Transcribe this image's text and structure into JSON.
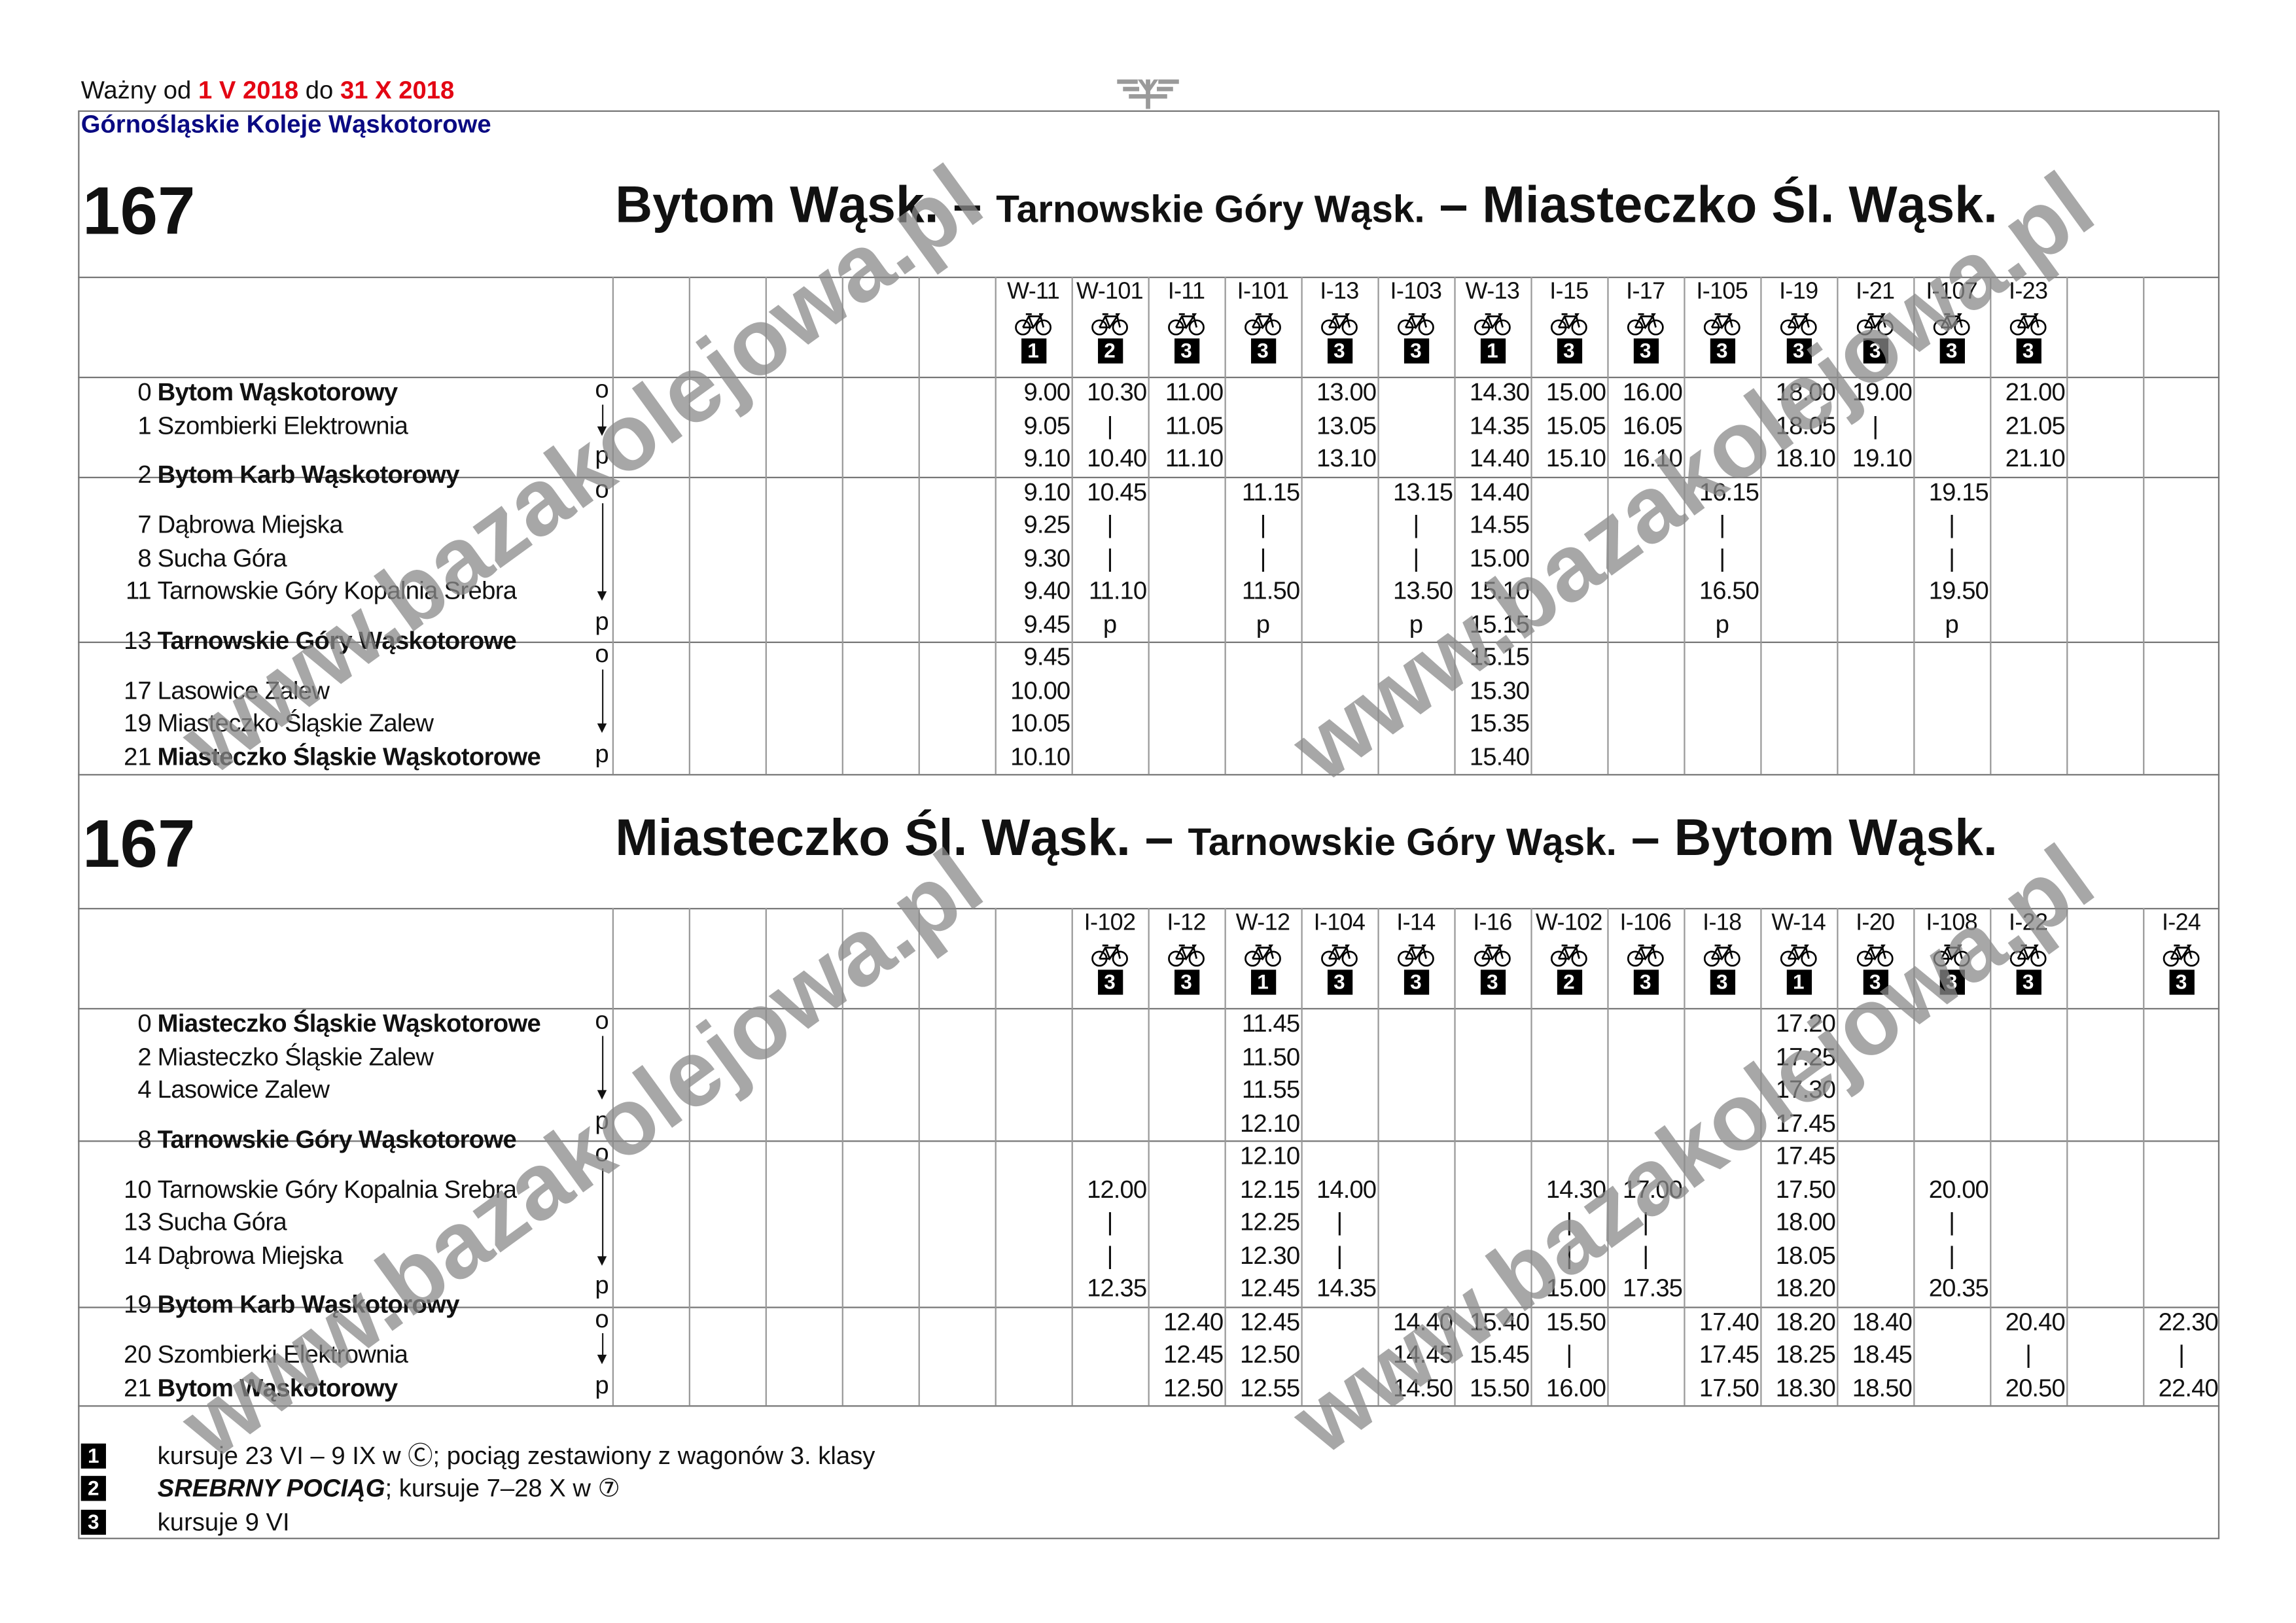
{
  "header": {
    "valid_prefix": "Ważny od",
    "valid_from": "1 V 2018",
    "valid_mid": "do",
    "valid_to": "31 X 2018",
    "operator": "Górnośląskie Koleje Wąskotorowe",
    "logo_icon": "railway-logo-icon"
  },
  "colors": {
    "date_red": "#e30613",
    "operator_blue": "#0a0a82",
    "watermark": "#8a8a8a"
  },
  "watermark": "www.bazakolejowa.pl",
  "tables": [
    {
      "line": "167",
      "title": {
        "from": "Bytom Wąsk.",
        "sep1": "–",
        "via": "Tarnowskie Góry Wąsk.",
        "sep2": "–",
        "to": "Miasteczko Śl. Wąsk."
      },
      "groups": [
        [
          {
            "km": "0",
            "name": "Bytom Wąskotorowy",
            "bold": true,
            "mark": "o"
          },
          {
            "km": "1",
            "name": "Szombierki Elektrownia",
            "arrow": true
          },
          {
            "mark": "p"
          }
        ],
        [
          {
            "km": "2",
            "name": "Bytom Karb Wąskotorowy",
            "bold": true,
            "mark": "o",
            "transfer": true
          },
          {
            "km": "7",
            "name": "Dąbrowa Miejska"
          },
          {
            "km": "8",
            "name": "Sucha Góra"
          },
          {
            "km": "11",
            "name": "Tarnowskie Góry Kopalnia Srebra",
            "arrow": true
          },
          {
            "mark": "p"
          }
        ],
        [
          {
            "km": "13",
            "name": "Tarnowskie Góry Wąskotorowe",
            "bold": true,
            "mark": "o",
            "transfer": true
          },
          {
            "km": "17",
            "name": "Lasowice Zalew"
          },
          {
            "km": "19",
            "name": "Miasteczko Śląskie Zalew",
            "arrow": true
          },
          {
            "km": "21",
            "name": "Miasteczko Śląskie Wąskotorowe",
            "bold": true,
            "mark": "p"
          }
        ]
      ],
      "columns": [
        {
          "number": "",
          "times": []
        },
        {
          "number": "",
          "times": []
        },
        {
          "number": "",
          "times": []
        },
        {
          "number": "",
          "times": []
        },
        {
          "number": "",
          "times": []
        },
        {
          "number": "W-11",
          "bike": true,
          "badge": "1",
          "times": [
            "9.00",
            "9.05",
            "9.10",
            "9.10",
            "9.25",
            "9.30",
            "9.40",
            "9.45",
            "9.45",
            "10.00",
            "10.05",
            "10.10"
          ]
        },
        {
          "number": "W-101",
          "bike": true,
          "badge": "2",
          "times": [
            "10.30",
            "|",
            "10.40",
            "10.45",
            "|",
            "|",
            "11.10",
            "p",
            "",
            "",
            "",
            ""
          ]
        },
        {
          "number": "I-11",
          "bike": true,
          "badge": "3",
          "times": [
            "11.00",
            "11.05",
            "11.10",
            "",
            "",
            "",
            "",
            "",
            "",
            "",
            "",
            ""
          ]
        },
        {
          "number": "I-101",
          "bike": true,
          "badge": "3",
          "times": [
            "",
            "",
            "",
            "11.15",
            "|",
            "|",
            "11.50",
            "p",
            "",
            "",
            "",
            ""
          ]
        },
        {
          "number": "I-13",
          "bike": true,
          "badge": "3",
          "times": [
            "13.00",
            "13.05",
            "13.10",
            "",
            "",
            "",
            "",
            "",
            "",
            "",
            "",
            ""
          ]
        },
        {
          "number": "I-103",
          "bike": true,
          "badge": "3",
          "times": [
            "",
            "",
            "",
            "13.15",
            "|",
            "|",
            "13.50",
            "p",
            "",
            "",
            "",
            ""
          ]
        },
        {
          "number": "W-13",
          "bike": true,
          "badge": "1",
          "times": [
            "14.30",
            "14.35",
            "14.40",
            "14.40",
            "14.55",
            "15.00",
            "15.10",
            "15.15",
            "15.15",
            "15.30",
            "15.35",
            "15.40"
          ]
        },
        {
          "number": "I-15",
          "bike": true,
          "badge": "3",
          "times": [
            "15.00",
            "15.05",
            "15.10",
            "",
            "",
            "",
            "",
            "",
            "",
            "",
            "",
            ""
          ]
        },
        {
          "number": "I-17",
          "bike": true,
          "badge": "3",
          "times": [
            "16.00",
            "16.05",
            "16.10",
            "",
            "",
            "",
            "",
            "",
            "",
            "",
            "",
            ""
          ]
        },
        {
          "number": "I-105",
          "bike": true,
          "badge": "3",
          "times": [
            "",
            "",
            "",
            "16.15",
            "|",
            "|",
            "16.50",
            "p",
            "",
            "",
            "",
            ""
          ]
        },
        {
          "number": "I-19",
          "bike": true,
          "badge": "3",
          "times": [
            "18.00",
            "18.05",
            "18.10",
            "",
            "",
            "",
            "",
            "",
            "",
            "",
            "",
            ""
          ]
        },
        {
          "number": "I-21",
          "bike": true,
          "badge": "3",
          "times": [
            "19.00",
            "|",
            "19.10",
            "",
            "",
            "",
            "",
            "",
            "",
            "",
            "",
            ""
          ]
        },
        {
          "number": "I-107",
          "bike": true,
          "badge": "3",
          "times": [
            "",
            "",
            "",
            "19.15",
            "|",
            "|",
            "19.50",
            "p",
            "",
            "",
            "",
            ""
          ]
        },
        {
          "number": "I-23",
          "bike": true,
          "badge": "3",
          "times": [
            "21.00",
            "21.05",
            "21.10",
            "",
            "",
            "",
            "",
            "",
            "",
            "",
            "",
            ""
          ]
        },
        {
          "number": "",
          "times": []
        },
        {
          "number": "",
          "times": []
        }
      ]
    },
    {
      "line": "167",
      "title": {
        "from": "Miasteczko Śl. Wąsk.",
        "sep1": "–",
        "via": "Tarnowskie Góry Wąsk.",
        "sep2": "–",
        "to": "Bytom Wąsk."
      },
      "groups": [
        [
          {
            "km": "0",
            "name": "Miasteczko Śląskie Wąskotorowe",
            "bold": true,
            "mark": "o"
          },
          {
            "km": "2",
            "name": "Miasteczko Śląskie Zalew"
          },
          {
            "km": "4",
            "name": "Lasowice Zalew",
            "arrow": true
          },
          {
            "mark": "p"
          }
        ],
        [
          {
            "km": "8",
            "name": "Tarnowskie Góry Wąskotorowe",
            "bold": true,
            "mark": "o",
            "transfer": true
          },
          {
            "km": "10",
            "name": "Tarnowskie Góry Kopalnia Srebra"
          },
          {
            "km": "13",
            "name": "Sucha Góra"
          },
          {
            "km": "14",
            "name": "Dąbrowa Miejska",
            "arrow": true
          },
          {
            "mark": "p"
          }
        ],
        [
          {
            "km": "19",
            "name": "Bytom Karb Wąskotorowy",
            "bold": true,
            "mark": "o",
            "transfer": true
          },
          {
            "km": "20",
            "name": "Szombierki Elektrownia",
            "arrow": true
          },
          {
            "km": "21",
            "name": "Bytom Wąskotorowy",
            "bold": true,
            "mark": "p"
          }
        ]
      ],
      "columns": [
        {
          "number": "",
          "times": []
        },
        {
          "number": "",
          "times": []
        },
        {
          "number": "",
          "times": []
        },
        {
          "number": "",
          "times": []
        },
        {
          "number": "",
          "times": []
        },
        {
          "number": "",
          "times": []
        },
        {
          "number": "I-102",
          "bike": true,
          "badge": "3",
          "times": [
            "",
            "",
            "",
            "",
            "",
            "12.00",
            "|",
            "|",
            "12.35",
            "",
            "",
            ""
          ]
        },
        {
          "number": "I-12",
          "bike": true,
          "badge": "3",
          "times": [
            "",
            "",
            "",
            "",
            "",
            "",
            "",
            "",
            "",
            "12.40",
            "12.45",
            "12.50"
          ]
        },
        {
          "number": "W-12",
          "bike": true,
          "badge": "1",
          "times": [
            "11.45",
            "11.50",
            "11.55",
            "12.10",
            "12.10",
            "12.15",
            "12.25",
            "12.30",
            "12.45",
            "12.45",
            "12.50",
            "12.55"
          ]
        },
        {
          "number": "I-104",
          "bike": true,
          "badge": "3",
          "times": [
            "",
            "",
            "",
            "",
            "",
            "14.00",
            "|",
            "|",
            "14.35",
            "",
            "",
            ""
          ]
        },
        {
          "number": "I-14",
          "bike": true,
          "badge": "3",
          "times": [
            "",
            "",
            "",
            "",
            "",
            "",
            "",
            "",
            "",
            "14.40",
            "14.45",
            "14.50"
          ]
        },
        {
          "number": "I-16",
          "bike": true,
          "badge": "3",
          "times": [
            "",
            "",
            "",
            "",
            "",
            "",
            "",
            "",
            "",
            "15.40",
            "15.45",
            "15.50"
          ]
        },
        {
          "number": "W-102",
          "bike": true,
          "badge": "2",
          "times": [
            "",
            "",
            "",
            "",
            "",
            "14.30",
            "|",
            "|",
            "15.00",
            "15.50",
            "|",
            "16.00"
          ]
        },
        {
          "number": "I-106",
          "bike": true,
          "badge": "3",
          "times": [
            "",
            "",
            "",
            "",
            "",
            "17.00",
            "|",
            "|",
            "17.35",
            "",
            "",
            ""
          ]
        },
        {
          "number": "I-18",
          "bike": true,
          "badge": "3",
          "times": [
            "",
            "",
            "",
            "",
            "",
            "",
            "",
            "",
            "",
            "17.40",
            "17.45",
            "17.50"
          ]
        },
        {
          "number": "W-14",
          "bike": true,
          "badge": "1",
          "times": [
            "17.20",
            "17.25",
            "17.30",
            "17.45",
            "17.45",
            "17.50",
            "18.00",
            "18.05",
            "18.20",
            "18.20",
            "18.25",
            "18.30"
          ]
        },
        {
          "number": "I-20",
          "bike": true,
          "badge": "3",
          "times": [
            "",
            "",
            "",
            "",
            "",
            "",
            "",
            "",
            "",
            "18.40",
            "18.45",
            "18.50"
          ]
        },
        {
          "number": "I-108",
          "bike": true,
          "badge": "3",
          "times": [
            "",
            "",
            "",
            "",
            "",
            "20.00",
            "|",
            "|",
            "20.35",
            "",
            "",
            ""
          ]
        },
        {
          "number": "I-22",
          "bike": true,
          "badge": "3",
          "times": [
            "",
            "",
            "",
            "",
            "",
            "",
            "",
            "",
            "",
            "20.40",
            "|",
            "20.50"
          ]
        },
        {
          "number": "",
          "times": []
        },
        {
          "number": "I-24",
          "bike": true,
          "badge": "3",
          "times": [
            "",
            "",
            "",
            "",
            "",
            "",
            "",
            "",
            "",
            "22.30",
            "|",
            "22.40"
          ]
        }
      ]
    }
  ],
  "footnotes": [
    {
      "badge": "1",
      "bold_italic": "",
      "text": "kursuje 23 VI – 9 IX w Ⓒ; pociąg zestawiony z wagonów 3. klasy"
    },
    {
      "badge": "2",
      "bold_italic": "SREBRNY POCIĄG",
      "text": "; kursuje 7–28 X w ⑦"
    },
    {
      "badge": "3",
      "bold_italic": "",
      "text": "kursuje 9 VI"
    }
  ]
}
